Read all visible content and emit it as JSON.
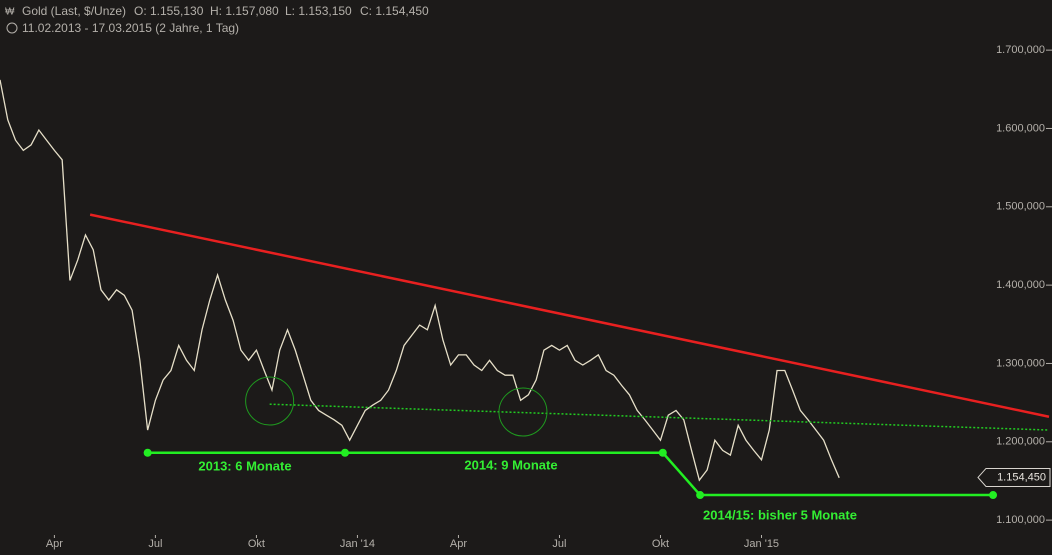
{
  "chart_data": {
    "type": "line",
    "title": "Gold (Last, $/Unze)",
    "ohlc": [
      "O: 1.155,130",
      "H: 1.157,080",
      "L: 1.153,150",
      "C: 1.154,450"
    ],
    "subtitle": "11.02.2013 - 17.03.2015 (2 Jahre, 1 Tag)",
    "series": [
      {
        "color": "#e6dfc8",
        "values": [
          1662,
          1611,
          1585,
          1572,
          1579,
          1598,
          1585,
          1572,
          1560,
          1406,
          1432,
          1464,
          1445,
          1394,
          1381,
          1394,
          1387,
          1368,
          1304,
          1215,
          1253,
          1279,
          1291,
          1323,
          1304,
          1291,
          1343,
          1381,
          1413,
          1381,
          1355,
          1317,
          1304,
          1317,
          1291,
          1266,
          1317,
          1343,
          1317,
          1285,
          1253,
          1240,
          1234,
          1228,
          1221,
          1202,
          1221,
          1240,
          1247,
          1253,
          1266,
          1291,
          1323,
          1336,
          1349,
          1343,
          1374,
          1330,
          1298,
          1311,
          1311,
          1298,
          1291,
          1304,
          1291,
          1285,
          1285,
          1253,
          1260,
          1279,
          1317,
          1323,
          1317,
          1323,
          1304,
          1298,
          1304,
          1311,
          1291,
          1285,
          1272,
          1260,
          1240,
          1228,
          1215,
          1202,
          1234,
          1240,
          1228,
          1189,
          1151,
          1164,
          1202,
          1189,
          1183,
          1221,
          1202,
          1189,
          1177,
          1215,
          1291,
          1291,
          1266,
          1240,
          1228,
          1215,
          1202,
          1177,
          1154
        ]
      }
    ],
    "xlim": [
      0,
      135
    ],
    "xticks": [
      {
        "value": 7,
        "label": "Apr"
      },
      {
        "value": 20,
        "label": "Jul"
      },
      {
        "value": 33,
        "label": "Okt"
      },
      {
        "value": 46,
        "label": "Jan '14"
      },
      {
        "value": 59,
        "label": "Apr"
      },
      {
        "value": 72,
        "label": "Jul"
      },
      {
        "value": 85,
        "label": "Okt"
      },
      {
        "value": 98,
        "label": "Jan '15"
      }
    ],
    "ylim": [
      1081,
      1764
    ],
    "yticks": [
      {
        "value": 1700,
        "label": "1.700,000"
      },
      {
        "value": 1600,
        "label": "1.600,000"
      },
      {
        "value": 1500,
        "label": "1.500,000"
      },
      {
        "value": 1400,
        "label": "1.400,000"
      },
      {
        "value": 1300,
        "label": "1.300,000"
      },
      {
        "value": 1200,
        "label": "1.200,000"
      },
      {
        "value": 1100,
        "label": "1.100,000"
      }
    ],
    "last_price": {
      "value": 1154.45,
      "label": "1.154,450"
    },
    "trend_lines": [
      {
        "color": "#e82020",
        "dashed": false,
        "points": [
          [
            11.6,
            1490
          ],
          [
            135,
            1232
          ]
        ]
      },
      {
        "color": "#22cc22",
        "dashed": true,
        "points": [
          [
            34.7,
            1248
          ],
          [
            135,
            1215
          ]
        ]
      },
      {
        "color": "#22ee22",
        "dashed": false,
        "points": [
          [
            19,
            1186
          ],
          [
            44.4,
            1186
          ],
          [
            85.3,
            1186
          ],
          [
            90.1,
            1132
          ],
          [
            127.8,
            1132
          ]
        ]
      }
    ],
    "circles": [
      [
        34.7,
        1252
      ],
      [
        67.3,
        1238
      ]
    ],
    "annotations": [
      "2013: 6 Monate",
      "2014: 9 Monate",
      "2014/15: bisher 5 Monate"
    ]
  }
}
